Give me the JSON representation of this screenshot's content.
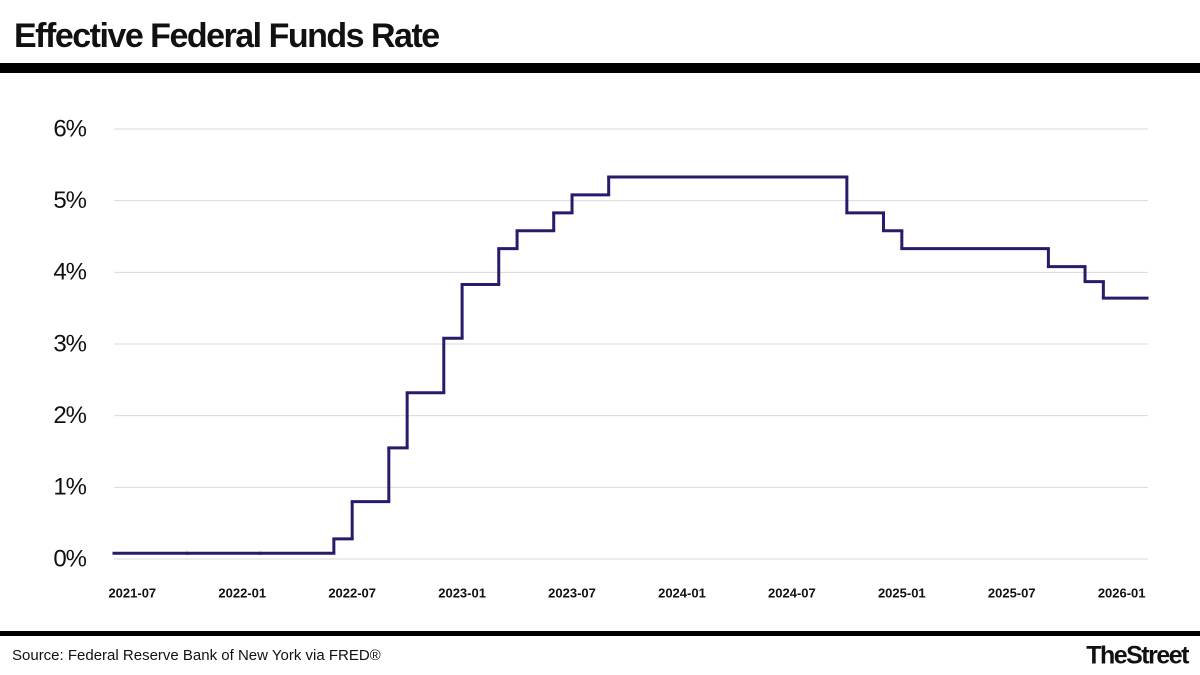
{
  "chart_data": {
    "type": "step-line",
    "title": "Effective Federal Funds Rate",
    "source": "Source: Federal Reserve Bank of New York via FRED®",
    "brand": "TheStreet",
    "color": "#2b1a6b",
    "x": [
      "2021-06",
      "2021-10",
      "2022-02",
      "2022-06",
      "2022-07",
      "2022-09",
      "2022-10",
      "2022-12",
      "2023-01",
      "2023-03",
      "2023-04",
      "2023-06",
      "2023-07",
      "2023-09",
      "2024-10",
      "2024-12",
      "2025-01",
      "2025-09",
      "2025-11",
      "2025-12"
    ],
    "values": [
      0.08,
      0.08,
      0.08,
      0.28,
      0.8,
      1.55,
      2.32,
      3.08,
      3.83,
      4.33,
      4.58,
      4.83,
      5.08,
      5.33,
      4.83,
      4.58,
      4.33,
      4.08,
      3.87,
      3.64
    ],
    "xlim": [
      "2021-06",
      "2026-02"
    ],
    "xticks": [
      "2021-07",
      "2022-01",
      "2022-07",
      "2023-01",
      "2023-07",
      "2024-01",
      "2024-07",
      "2025-01",
      "2025-07",
      "2026-01"
    ],
    "ylim": [
      0,
      6
    ],
    "yticks": [
      {
        "value": 0,
        "label": "0%"
      },
      {
        "value": 1,
        "label": "1%"
      },
      {
        "value": 2,
        "label": "2%"
      },
      {
        "value": 3,
        "label": "3%"
      },
      {
        "value": 4,
        "label": "4%"
      },
      {
        "value": 5,
        "label": "5%"
      },
      {
        "value": 6,
        "label": "6%"
      }
    ],
    "grid": true
  }
}
